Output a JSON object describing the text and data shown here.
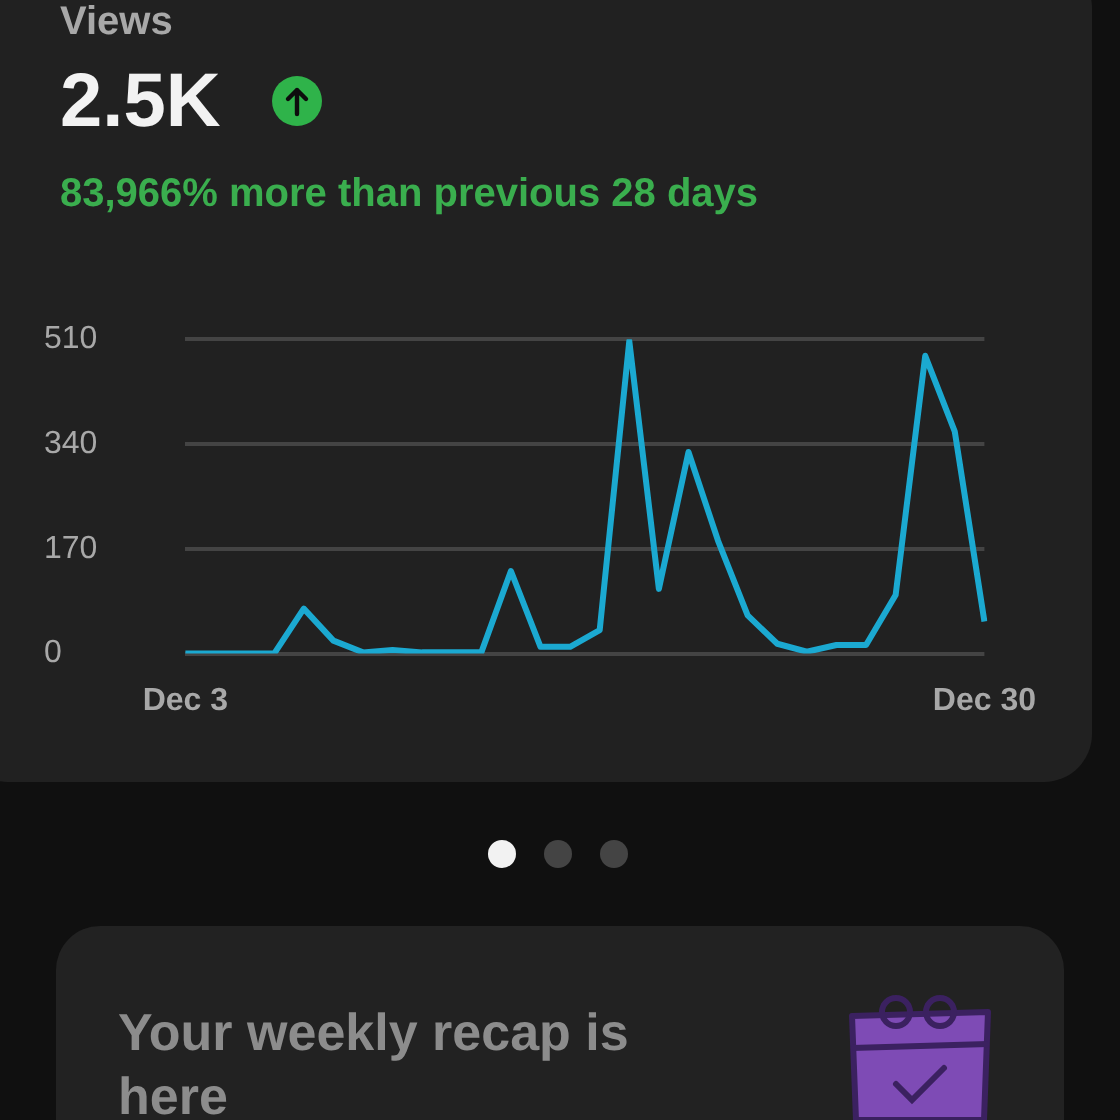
{
  "chart_data": {
    "type": "line",
    "title": "Views",
    "subtitle": "2.5K",
    "annotations": [
      "83,966% more than previous 28 days",
      "Your weekly recap is here"
    ],
    "categories": [
      "Dec 3",
      null,
      null,
      null,
      null,
      null,
      null,
      null,
      null,
      null,
      null,
      null,
      null,
      null,
      null,
      null,
      null,
      null,
      null,
      null,
      null,
      null,
      null,
      null,
      null,
      null,
      null,
      "Dec 30"
    ],
    "values": [
      0,
      0,
      0,
      0,
      73,
      21,
      2,
      6,
      2,
      2,
      2,
      134,
      11,
      11,
      38,
      507,
      105,
      327,
      183,
      62,
      16,
      3,
      14,
      14,
      95,
      483,
      360,
      52
    ],
    "color": "#1ba9d1",
    "ylim": [
      0,
      510
    ],
    "yticks": [
      0,
      170,
      340,
      510
    ],
    "grid": "y",
    "marker": "none",
    "line_style": "solid"
  }
}
